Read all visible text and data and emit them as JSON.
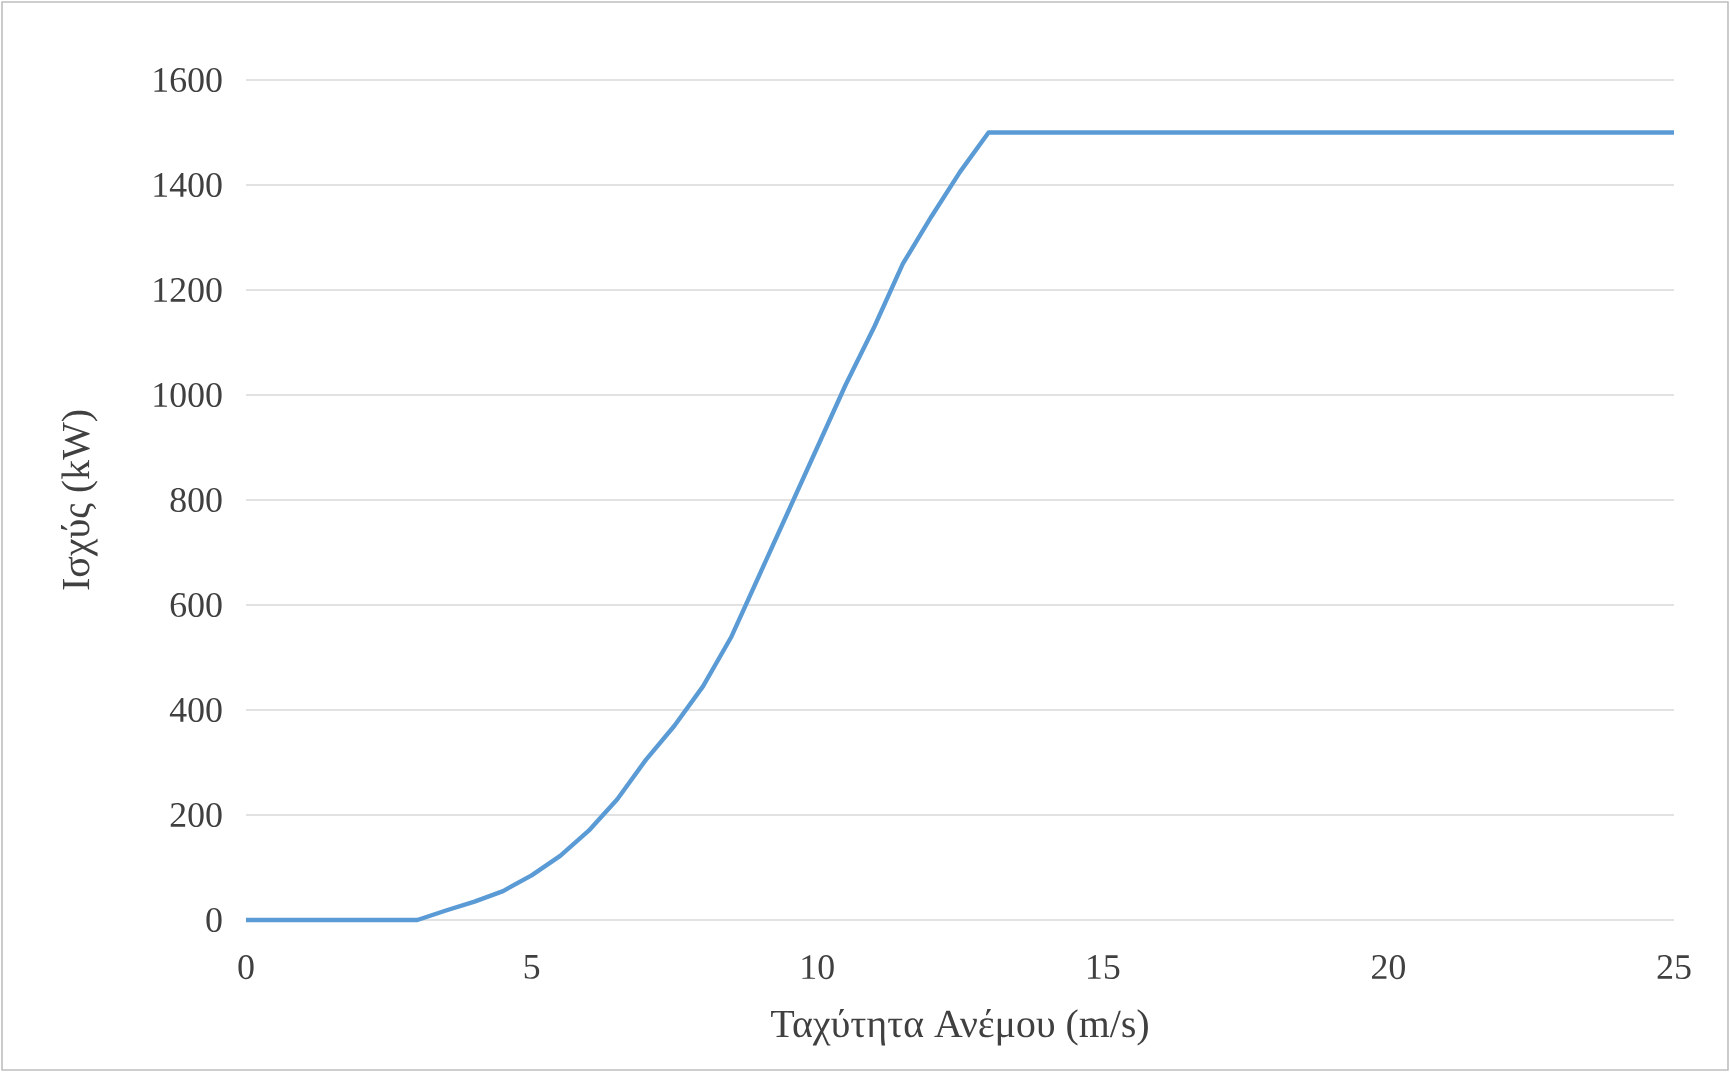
{
  "chart_data": {
    "type": "line",
    "xlabel": "Ταχύτητα Ανέμου (m/s)",
    "ylabel": "Ισχύς (kW)",
    "x": [
      0,
      1,
      2,
      3,
      3.5,
      4,
      4.5,
      5,
      5.5,
      6,
      6.5,
      7,
      7.5,
      8,
      8.5,
      9,
      9.5,
      10,
      10.5,
      11,
      11.5,
      12,
      12.5,
      13,
      14,
      15,
      20,
      25
    ],
    "series": [
      {
        "color": "#5b9bd5",
        "values": [
          0,
          0,
          0,
          0,
          18,
          35,
          55,
          85,
          122,
          170,
          230,
          305,
          370,
          445,
          540,
          660,
          780,
          900,
          1020,
          1130,
          1250,
          1340,
          1425,
          1500,
          1500,
          1500,
          1500,
          1500
        ]
      }
    ],
    "xlim": [
      0,
      25
    ],
    "xticks": [
      0,
      5,
      10,
      15,
      20,
      25
    ],
    "ylim": [
      0,
      1600
    ],
    "yticks": [
      0,
      200,
      400,
      600,
      800,
      1000,
      1200,
      1400,
      1600
    ],
    "grid": "y",
    "marker": "none",
    "line_style": "solid"
  }
}
